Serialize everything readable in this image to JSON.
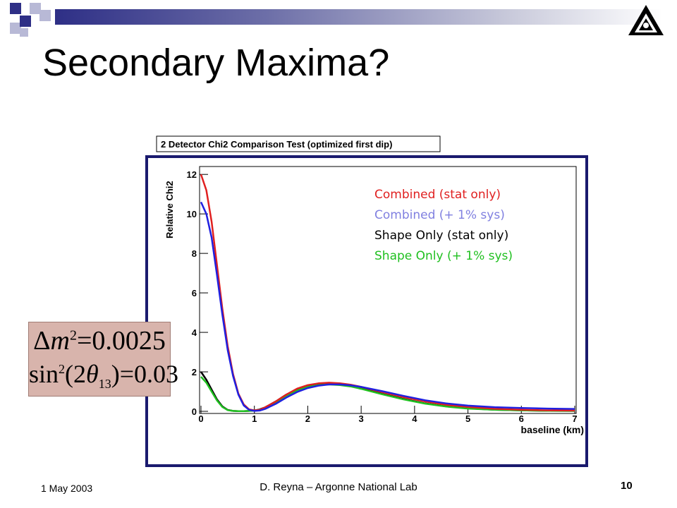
{
  "slide": {
    "title": "Secondary Maxima?",
    "footer_date": "1 May 2003",
    "footer_center": "D. Reyna – Argonne National Lab",
    "page_number": "10",
    "colors": {
      "bar_dark": "#2e2f86",
      "square_light": "#b8b9d6",
      "frame": "#1a1a6e"
    }
  },
  "equation": {
    "line1_prefix": "Δ",
    "line1_var": "m",
    "line1_exp": "2",
    "line1_value": "=0.0025",
    "line2_func": "sin",
    "line2_exp": "2",
    "line2_open": "(2",
    "line2_var": "θ",
    "line2_sub": "13",
    "line2_value": ")=0.03"
  },
  "chart_data": {
    "type": "line",
    "title": "2 Detector Chi2 Comparison Test (optimized first dip)",
    "xlabel": "baseline (km)",
    "ylabel": "Relative Chi2",
    "xlim": [
      0,
      7
    ],
    "ylim": [
      0,
      12.4
    ],
    "x_ticks": [
      "0",
      "1",
      "2",
      "3",
      "4",
      "5",
      "6",
      "7"
    ],
    "y_ticks": [
      "0",
      "2",
      "4",
      "6",
      "8",
      "10",
      "12"
    ],
    "grid": false,
    "legend_position": "top-right",
    "series": [
      {
        "name": "Combined (stat only)",
        "color": "#e02020",
        "x": [
          0,
          0.1,
          0.2,
          0.3,
          0.4,
          0.5,
          0.6,
          0.7,
          0.8,
          0.9,
          1.0,
          1.1,
          1.2,
          1.4,
          1.6,
          1.8,
          2.0,
          2.2,
          2.4,
          2.6,
          2.8,
          3.0,
          3.4,
          3.8,
          4.2,
          4.6,
          5.0,
          5.5,
          6.0,
          6.5,
          7.0
        ],
        "y": [
          12.0,
          11.2,
          9.6,
          7.4,
          5.2,
          3.3,
          1.9,
          0.9,
          0.35,
          0.1,
          0.05,
          0.08,
          0.2,
          0.5,
          0.85,
          1.15,
          1.33,
          1.42,
          1.45,
          1.42,
          1.35,
          1.24,
          0.97,
          0.72,
          0.5,
          0.33,
          0.22,
          0.13,
          0.08,
          0.05,
          0.04
        ]
      },
      {
        "name": "Combined (+ 1% sys)",
        "color": "#2020e0",
        "x": [
          0,
          0.1,
          0.2,
          0.3,
          0.4,
          0.5,
          0.6,
          0.7,
          0.8,
          0.9,
          1.0,
          1.1,
          1.2,
          1.4,
          1.6,
          1.8,
          2.0,
          2.2,
          2.4,
          2.6,
          2.8,
          3.0,
          3.4,
          3.8,
          4.2,
          4.6,
          5.0,
          5.5,
          6.0,
          6.5,
          7.0
        ],
        "y": [
          10.6,
          10.0,
          8.8,
          6.9,
          4.9,
          3.1,
          1.8,
          0.85,
          0.3,
          0.08,
          0.02,
          0.04,
          0.12,
          0.38,
          0.7,
          0.98,
          1.18,
          1.3,
          1.36,
          1.36,
          1.32,
          1.24,
          1.02,
          0.78,
          0.56,
          0.4,
          0.29,
          0.21,
          0.17,
          0.14,
          0.12
        ]
      },
      {
        "name": "Shape Only (stat only)",
        "color": "#000000",
        "x": [
          0,
          0.1,
          0.2,
          0.3,
          0.4,
          0.5,
          0.6,
          0.7,
          0.8,
          0.9,
          1.0,
          1.1,
          1.2,
          1.4,
          1.6,
          1.8,
          2.0,
          2.2,
          2.4,
          2.6,
          2.8,
          3.0,
          3.4,
          3.8,
          4.2,
          4.6,
          5.0,
          5.5,
          6.0,
          6.5,
          7.0
        ],
        "y": [
          2.0,
          1.6,
          1.1,
          0.6,
          0.25,
          0.07,
          0.02,
          0.01,
          0.01,
          0.02,
          0.04,
          0.1,
          0.2,
          0.5,
          0.85,
          1.1,
          1.3,
          1.38,
          1.4,
          1.36,
          1.28,
          1.16,
          0.88,
          0.62,
          0.4,
          0.25,
          0.15,
          0.08,
          0.05,
          0.03,
          0.02
        ]
      },
      {
        "name": "Shape Only (+ 1% sys)",
        "color": "#20c020",
        "x": [
          0,
          0.1,
          0.2,
          0.3,
          0.4,
          0.5,
          0.6,
          0.7,
          0.8,
          0.9,
          1.0,
          1.1,
          1.2,
          1.4,
          1.6,
          1.8,
          2.0,
          2.2,
          2.4,
          2.6,
          2.8,
          3.0,
          3.4,
          3.8,
          4.2,
          4.6,
          5.0,
          5.5,
          6.0,
          6.5,
          7.0
        ],
        "y": [
          1.75,
          1.45,
          1.0,
          0.55,
          0.22,
          0.06,
          0.02,
          0.01,
          0.01,
          0.02,
          0.04,
          0.09,
          0.18,
          0.46,
          0.8,
          1.05,
          1.24,
          1.33,
          1.36,
          1.33,
          1.26,
          1.14,
          0.86,
          0.6,
          0.39,
          0.24,
          0.14,
          0.08,
          0.05,
          0.03,
          0.02
        ]
      }
    ]
  }
}
